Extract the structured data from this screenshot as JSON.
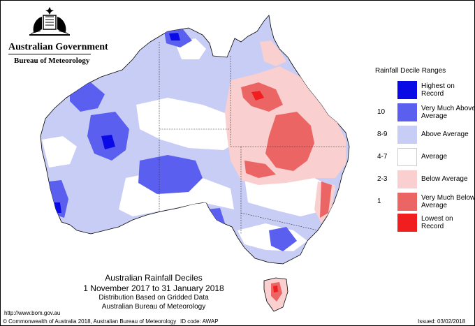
{
  "header": {
    "government": "Australian Government",
    "bureau": "Bureau of Meteorology"
  },
  "legend": {
    "title": "Rainfall Decile Ranges",
    "items": [
      {
        "code": "",
        "label": "Highest on Record",
        "color": "#0a0ae6"
      },
      {
        "code": "10",
        "label": "Very Much Above Average",
        "color": "#5a5ff0"
      },
      {
        "code": "8-9",
        "label": "Above Average",
        "color": "#c8cdf5"
      },
      {
        "code": "4-7",
        "label": "Average",
        "color": "#ffffff"
      },
      {
        "code": "2-3",
        "label": "Below Average",
        "color": "#f9cfcf"
      },
      {
        "code": "1",
        "label": "Very Much Below Average",
        "color": "#ec6565"
      },
      {
        "code": "",
        "label": "Lowest on Record",
        "color": "#f01e1e"
      }
    ]
  },
  "map_title": {
    "line1": "Australian Rainfall Deciles",
    "line2": "1 November 2017 to 31 January 2018",
    "line3": "Distribution Based on Gridded Data",
    "line4": "Australian Bureau of Meteorology"
  },
  "footer": {
    "url": "http://www.bom.gov.au",
    "copyright": "© Commonwealth of Australia 2018, Australian Bureau of Meteorology",
    "id_code": "ID code: AWAP",
    "issued": "Issued: 03/02/2018"
  }
}
